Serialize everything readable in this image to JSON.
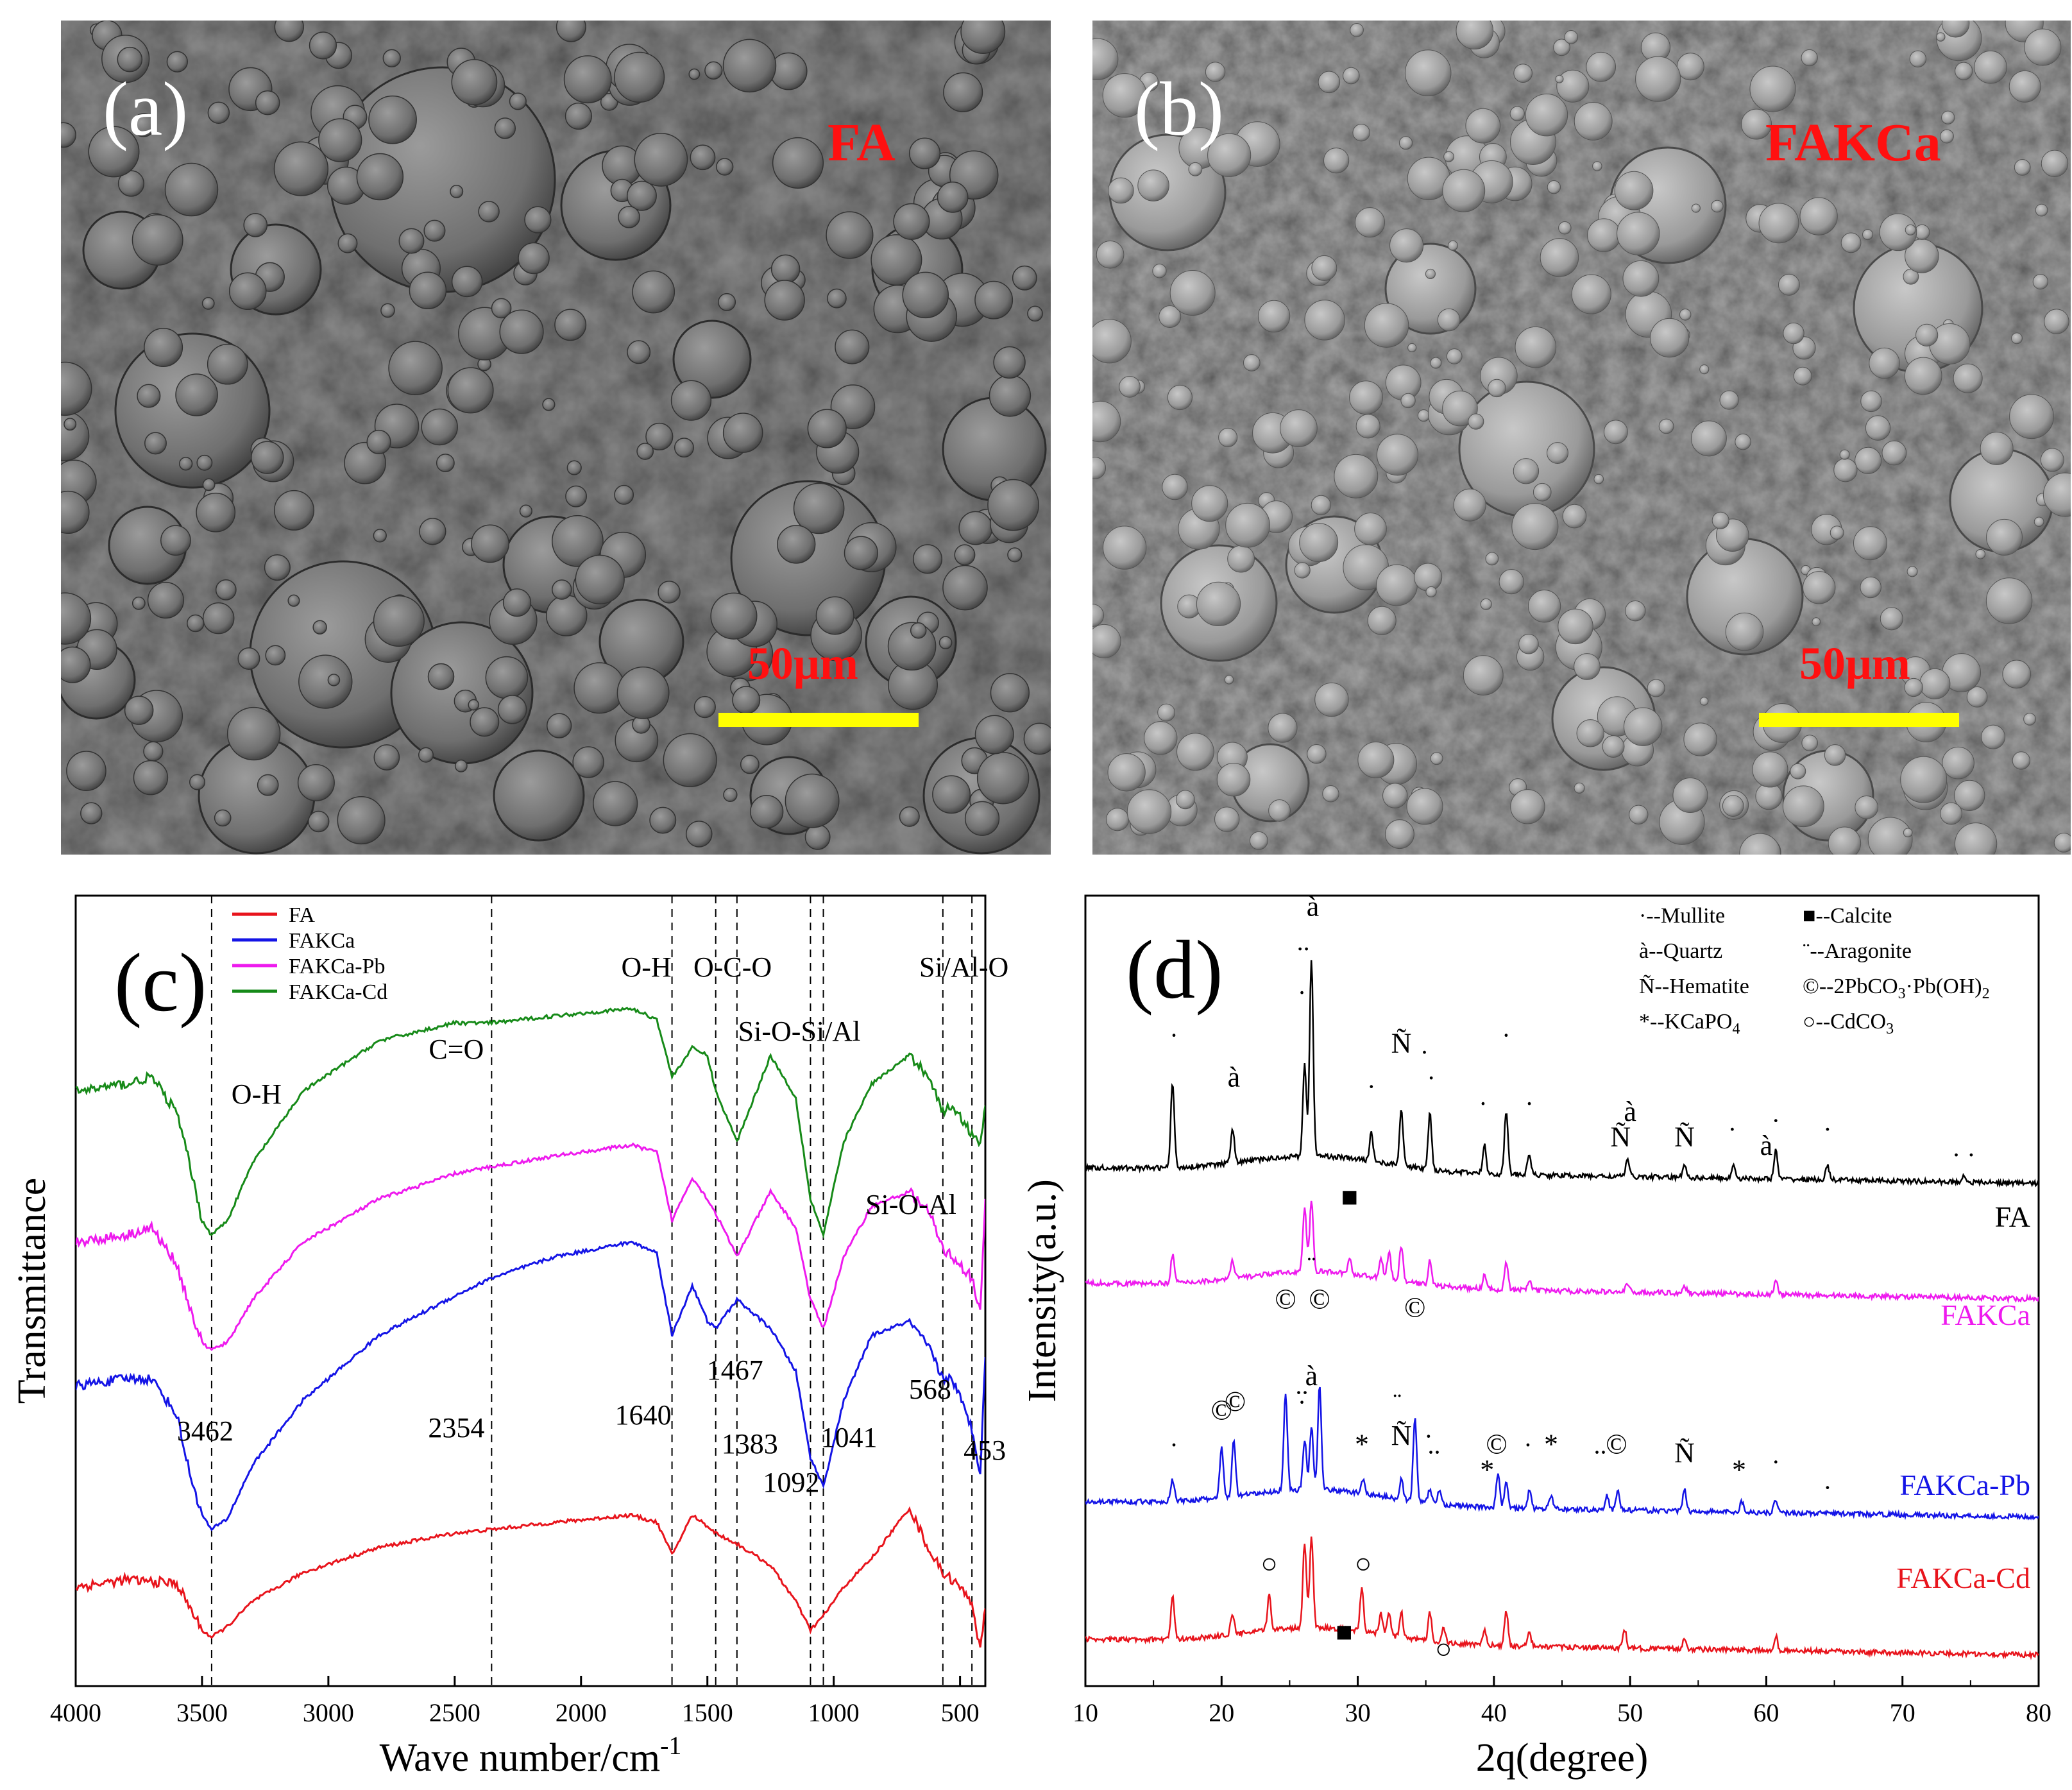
{
  "colors": {
    "FA": "#e8141c",
    "FAKCa": "#1414e6",
    "FAKCa-Pb": "#ee1aee",
    "FAKCa-Cd": "#168a18",
    "xrd_FA": "#000000",
    "xrd_FAKCa": "#ee1aee",
    "xrd_FAKCa-Pb": "#1414e6",
    "xrd_FAKCa-Cd": "#e8141c",
    "sem_label": "#ff1010",
    "scale_bar": "#ffff00"
  },
  "panels": {
    "a": {
      "label": "(a)",
      "tag": "FA",
      "scale": "50μm"
    },
    "b": {
      "label": "(b)",
      "tag": "FAKCa",
      "scale": "50μm"
    },
    "c": {
      "label": "(c)"
    },
    "d": {
      "label": "(d)"
    }
  },
  "chart_data": [
    {
      "type": "line",
      "panel": "c",
      "xlabel": "Wave number/cm",
      "xlabel_sup": "-1",
      "ylabel": "Transmittance",
      "xlim": [
        4000,
        400
      ],
      "xticks": [
        4000,
        3500,
        3000,
        2500,
        2000,
        1500,
        1000,
        500
      ],
      "legend": {
        "placement": "top-left",
        "entries": [
          "FA",
          "FAKCa",
          "FAKCa-Pb",
          "FAKCa-Cd"
        ]
      },
      "reference_lines": [
        3462,
        2354,
        1640,
        1467,
        1383,
        1092,
        1041,
        568,
        453
      ],
      "peak_numbers": [
        {
          "text": "3462",
          "x": 3462
        },
        {
          "text": "2354",
          "x": 2354
        },
        {
          "text": "1640",
          "x": 1640
        },
        {
          "text": "1467",
          "x": 1467
        },
        {
          "text": "1383",
          "x": 1383
        },
        {
          "text": "1092",
          "x": 1092
        },
        {
          "text": "1041",
          "x": 1041
        },
        {
          "text": "568",
          "x": 568
        },
        {
          "text": "453",
          "x": 453
        }
      ],
      "group_labels": [
        {
          "text": "O-H",
          "x": 3462
        },
        {
          "text": "C=O",
          "x": 2354
        },
        {
          "text": "O-H",
          "x": 1640
        },
        {
          "text": "O-C-O",
          "x": 1400
        },
        {
          "text": "Si-O-Si/Al",
          "x": 1060
        },
        {
          "text": "Si/Al-O",
          "x": 510
        },
        {
          "text": "Si-O-Al",
          "x": 720
        }
      ],
      "series": [
        {
          "name": "FA",
          "x": [
            4000,
            3800,
            3600,
            3500,
            3462,
            3400,
            3300,
            3100,
            2800,
            2500,
            2354,
            2100,
            1800,
            1700,
            1640,
            1560,
            1500,
            1467,
            1383,
            1250,
            1150,
            1092,
            1041,
            960,
            850,
            700,
            620,
            568,
            530,
            453,
            420,
            400
          ],
          "y": [
            12,
            13,
            12.5,
            6,
            5,
            6.5,
            10,
            14,
            17.5,
            19.5,
            20,
            21,
            22,
            21,
            16.5,
            22,
            20.5,
            19.5,
            18,
            15,
            10,
            6,
            8,
            12,
            16,
            23,
            17,
            14,
            13,
            10,
            3,
            9
          ]
        },
        {
          "name": "FAKCa",
          "x": [
            4000,
            3800,
            3700,
            3600,
            3550,
            3500,
            3462,
            3400,
            3300,
            3100,
            2800,
            2500,
            2354,
            2100,
            1800,
            1700,
            1640,
            1560,
            1500,
            1467,
            1383,
            1250,
            1150,
            1092,
            1041,
            960,
            850,
            700,
            620,
            568,
            530,
            453,
            420,
            400
          ],
          "y": [
            40,
            41,
            41,
            36,
            28,
            22,
            20,
            21.5,
            29,
            38,
            47,
            52.5,
            55,
            58,
            60,
            58.5,
            47,
            54,
            49,
            48,
            52,
            48,
            42,
            30,
            26,
            38,
            47,
            49,
            45,
            41,
            41,
            34,
            28,
            44
          ]
        },
        {
          "name": "FAKCa-Pb",
          "x": [
            4000,
            3800,
            3700,
            3600,
            3550,
            3500,
            3462,
            3400,
            3300,
            3100,
            2800,
            2500,
            2354,
            2100,
            1800,
            1700,
            1640,
            1560,
            1500,
            1467,
            1383,
            1250,
            1150,
            1092,
            1041,
            960,
            850,
            700,
            620,
            568,
            530,
            453,
            420,
            400
          ],
          "y": [
            60,
            61,
            62,
            57,
            51,
            46,
            45,
            46,
            52,
            60,
            66,
            69.5,
            70.5,
            72,
            73.5,
            72.5,
            63,
            69,
            66,
            64,
            58,
            67,
            62,
            52,
            48,
            58,
            65,
            67,
            64,
            59,
            58,
            55,
            50,
            66
          ]
        },
        {
          "name": "FAKCa-Cd",
          "x": [
            4000,
            3800,
            3700,
            3600,
            3550,
            3500,
            3462,
            3400,
            3300,
            3100,
            2800,
            2500,
            2354,
            2100,
            1800,
            1700,
            1640,
            1560,
            1500,
            1467,
            1383,
            1250,
            1150,
            1092,
            1041,
            960,
            850,
            700,
            620,
            568,
            530,
            453,
            420,
            400
          ],
          "y": [
            81,
            82,
            83,
            78,
            71,
            63,
            61,
            63,
            71,
            81,
            88,
            90.5,
            90.5,
            91.5,
            92.5,
            91,
            83,
            87,
            86,
            81,
            74,
            86,
            80,
            66,
            61,
            74,
            82,
            86,
            83,
            78,
            79,
            75,
            74,
            79
          ]
        }
      ]
    },
    {
      "type": "line",
      "panel": "d",
      "xlabel": "2q(degree)",
      "ylabel": "Intensity(a.u.)",
      "xlim": [
        10,
        80
      ],
      "xticks": [
        10,
        20,
        30,
        40,
        50,
        60,
        70,
        80
      ],
      "legend_keys": [
        {
          "text": "·--Mullite"
        },
        {
          "text": "■--Calcite"
        },
        {
          "text": "à--Quartz"
        },
        {
          "text": "¨--Aragonite"
        },
        {
          "text": "Ñ--Hematite"
        },
        {
          "text": "©--2PbCO",
          "sub1": "3",
          "mid": "·Pb(OH)",
          "sub2": "2"
        },
        {
          "text": "*--KCaPO",
          "sub1": "4"
        },
        {
          "text": "○--CdCO",
          "sub1": "3"
        }
      ],
      "series_labels": [
        "FA",
        "FAKCa",
        "FAKCa-Pb",
        "FAKCa-Cd"
      ],
      "series": [
        {
          "name": "FA",
          "peaks": [
            [
              16.4,
              12
            ],
            [
              20.8,
              5
            ],
            [
              26.1,
              13
            ],
            [
              26.6,
              28
            ],
            [
              31,
              4
            ],
            [
              33.2,
              8
            ],
            [
              35.3,
              8
            ],
            [
              39.3,
              4
            ],
            [
              40.9,
              9
            ],
            [
              42.6,
              3
            ],
            [
              49.8,
              2.5
            ],
            [
              54,
              2
            ],
            [
              57.6,
              2
            ],
            [
              60.7,
              4
            ],
            [
              64.5,
              2
            ],
            [
              74.5,
              1
            ]
          ]
        },
        {
          "name": "FAKCa",
          "peaks": [
            [
              16.4,
              4
            ],
            [
              20.8,
              2.5
            ],
            [
              26.1,
              9
            ],
            [
              26.6,
              10
            ],
            [
              29.4,
              2
            ],
            [
              31.7,
              3
            ],
            [
              32.3,
              4
            ],
            [
              33.2,
              5
            ],
            [
              35.3,
              3.5
            ],
            [
              39.3,
              2
            ],
            [
              40.9,
              4
            ],
            [
              42.6,
              1.5
            ],
            [
              49.8,
              1.2
            ],
            [
              54,
              1
            ],
            [
              60.7,
              2
            ]
          ]
        },
        {
          "name": "FAKCa-Pb",
          "peaks": [
            [
              16.4,
              3
            ],
            [
              20,
              7
            ],
            [
              20.9,
              8
            ],
            [
              24.7,
              14
            ],
            [
              26.1,
              7
            ],
            [
              26.6,
              9
            ],
            [
              27.2,
              15
            ],
            [
              30.4,
              2
            ],
            [
              33.2,
              3
            ],
            [
              34.2,
              12
            ],
            [
              35.3,
              2
            ],
            [
              36,
              2
            ],
            [
              40.3,
              5
            ],
            [
              40.9,
              3.5
            ],
            [
              42.6,
              2.5
            ],
            [
              44.2,
              2
            ],
            [
              48.3,
              2
            ],
            [
              49.1,
              3
            ],
            [
              54,
              3
            ],
            [
              58.2,
              1.5
            ],
            [
              60.7,
              2
            ]
          ]
        },
        {
          "name": "FAKCa-Cd",
          "peaks": [
            [
              16.4,
              6
            ],
            [
              20.8,
              3
            ],
            [
              23.5,
              5
            ],
            [
              26.1,
              12
            ],
            [
              26.6,
              13
            ],
            [
              30.3,
              6
            ],
            [
              31.7,
              3
            ],
            [
              32.3,
              3
            ],
            [
              33.2,
              3.5
            ],
            [
              35.3,
              4
            ],
            [
              36.3,
              2
            ],
            [
              39.3,
              2
            ],
            [
              40.9,
              5
            ],
            [
              42.6,
              2
            ],
            [
              49.6,
              2.5
            ],
            [
              54,
              1.5
            ],
            [
              60.7,
              2
            ]
          ]
        }
      ],
      "markers": [
        {
          "text": "·",
          "x": 16.5,
          "y": 73
        },
        {
          "text": "à",
          "x": 20.9,
          "y": 68
        },
        {
          "text": "..",
          "x": 26,
          "y": 84
        },
        {
          "text": "à",
          "x": 26.7,
          "y": 88
        },
        {
          "text": "·",
          "x": 25.9,
          "y": 78
        },
        {
          "text": "Ñ",
          "x": 33.2,
          "y": 72
        },
        {
          "text": "·",
          "x": 34.9,
          "y": 71
        },
        {
          "text": "·",
          "x": 31,
          "y": 67
        },
        {
          "text": "·",
          "x": 35.4,
          "y": 68
        },
        {
          "text": "·",
          "x": 39.2,
          "y": 65
        },
        {
          "text": "·",
          "x": 40.9,
          "y": 73
        },
        {
          "text": "·",
          "x": 42.6,
          "y": 65
        },
        {
          "text": "Ñ",
          "x": 49.3,
          "y": 61
        },
        {
          "text": "à",
          "x": 50,
          "y": 64
        },
        {
          "text": "Ñ",
          "x": 54,
          "y": 61
        },
        {
          "text": "·",
          "x": 57.5,
          "y": 62
        },
        {
          "text": "à",
          "x": 60,
          "y": 60
        },
        {
          "text": "·",
          "x": 60.7,
          "y": 63
        },
        {
          "text": "·",
          "x": 64.5,
          "y": 62
        },
        {
          "text": "· ·",
          "x": 74.5,
          "y": 59
        },
        {
          "text": "■",
          "x": 29.4,
          "y": 54
        },
        {
          "text": "¨",
          "x": 26.6,
          "y": 46
        },
        {
          "text": "©",
          "x": 24.7,
          "y": 42
        },
        {
          "text": "©",
          "x": 27.2,
          "y": 42
        },
        {
          "text": "©",
          "x": 34.2,
          "y": 41
        },
        {
          "text": "©",
          "x": 20,
          "y": 29
        },
        {
          "text": "©",
          "x": 21,
          "y": 30
        },
        {
          "text": "..",
          "x": 25.9,
          "y": 32
        },
        {
          "text": "à",
          "x": 26.6,
          "y": 33
        },
        {
          "text": "·",
          "x": 25.9,
          "y": 30
        },
        {
          "text": "¨",
          "x": 32.9,
          "y": 30
        },
        {
          "text": "Ñ",
          "x": 33.2,
          "y": 26
        },
        {
          "text": "*",
          "x": 30.3,
          "y": 25
        },
        {
          "text": "..",
          "x": 35.6,
          "y": 25
        },
        {
          "text": "·",
          "x": 35.2,
          "y": 26
        },
        {
          "text": "·",
          "x": 16.5,
          "y": 25
        },
        {
          "text": "*",
          "x": 39.5,
          "y": 22
        },
        {
          "text": "©",
          "x": 40.2,
          "y": 25
        },
        {
          "text": "·",
          "x": 42.5,
          "y": 25
        },
        {
          "text": "*",
          "x": 44.2,
          "y": 25
        },
        {
          "text": "..",
          "x": 47.8,
          "y": 25
        },
        {
          "text": "©",
          "x": 49,
          "y": 25
        },
        {
          "text": "Ñ",
          "x": 54,
          "y": 24
        },
        {
          "text": "*",
          "x": 58,
          "y": 22
        },
        {
          "text": "·",
          "x": 60.7,
          "y": 23
        },
        {
          "text": "·",
          "x": 64.5,
          "y": 20
        },
        {
          "text": "○",
          "x": 23.5,
          "y": 11
        },
        {
          "text": "○",
          "x": 30.4,
          "y": 11
        },
        {
          "text": "■",
          "x": 29,
          "y": 3
        },
        {
          "text": "○",
          "x": 36.3,
          "y": 1
        }
      ]
    }
  ]
}
